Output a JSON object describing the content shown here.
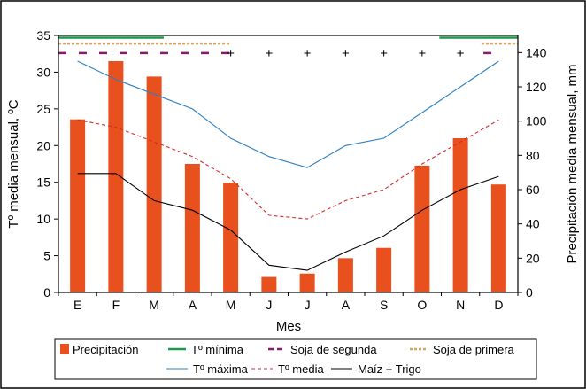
{
  "chart_data": {
    "type": "bar",
    "title": "",
    "xlabel": "Mes",
    "ylabel_left": "Tº media mensual, ºC",
    "ylabel_right": "Precipitación media mensual, mm",
    "categories": [
      "E",
      "F",
      "M",
      "A",
      "M",
      "J",
      "J",
      "A",
      "S",
      "O",
      "N",
      "D"
    ],
    "ylim_left": [
      0,
      35
    ],
    "yticks_left": [
      0,
      5,
      10,
      15,
      20,
      25,
      30,
      35
    ],
    "ylim_right": [
      0,
      150
    ],
    "yticks_right": [
      0,
      20,
      40,
      60,
      80,
      100,
      120,
      140
    ],
    "grid": false,
    "legend_position": "bottom",
    "bars": {
      "name": "Precipitación",
      "axis": "right",
      "color": "#e8501e",
      "values": [
        101,
        135,
        126,
        75,
        64,
        9,
        11,
        20,
        26,
        74,
        90,
        63
      ]
    },
    "lines": [
      {
        "name": "Tº máxima",
        "color": "#2f7fc1",
        "dash": "solid",
        "values": [
          31.5,
          29.0,
          27.0,
          25.0,
          21.0,
          18.5,
          17.0,
          20.0,
          21.0,
          24.5,
          28.0,
          31.5
        ]
      },
      {
        "name": "Tº media",
        "color": "#d62b2b",
        "dash": "dashed",
        "values": [
          23.5,
          22.5,
          20.5,
          18.5,
          15.5,
          10.5,
          10.0,
          12.5,
          14.0,
          17.5,
          20.5,
          23.5
        ]
      },
      {
        "name": "Maíz + Trigo",
        "color": "#000000",
        "dash": "solid",
        "values": [
          16.2,
          16.2,
          12.5,
          11.2,
          8.5,
          3.7,
          3.0,
          5.5,
          7.7,
          11.2,
          14.0,
          15.8
        ]
      }
    ],
    "periods": [
      {
        "name": "Tº mínima",
        "color": "#1a9a4a",
        "style": "solid",
        "level": 34.7,
        "ranges": [
          [
            -0.5,
            2.25
          ],
          [
            9.45,
            11.5
          ]
        ]
      },
      {
        "name": "Soja de primera",
        "color": "#d9a35c",
        "style": "dotted",
        "level": 33.9,
        "ranges": [
          [
            -0.5,
            4.0
          ],
          [
            10.55,
            11.5
          ]
        ]
      },
      {
        "name": "Soja de segunda",
        "color": "#8b1a6b",
        "style": "dashed",
        "level": 32.6,
        "ranges": [
          [
            -0.5,
            4.2
          ],
          [
            10.6,
            11.0
          ]
        ]
      }
    ],
    "markers": {
      "name": "Maíz + Trigo",
      "symbol": "+",
      "level": 32.6,
      "months": [
        "M",
        "J",
        "J",
        "A",
        "S",
        "O",
        "N"
      ]
    }
  }
}
